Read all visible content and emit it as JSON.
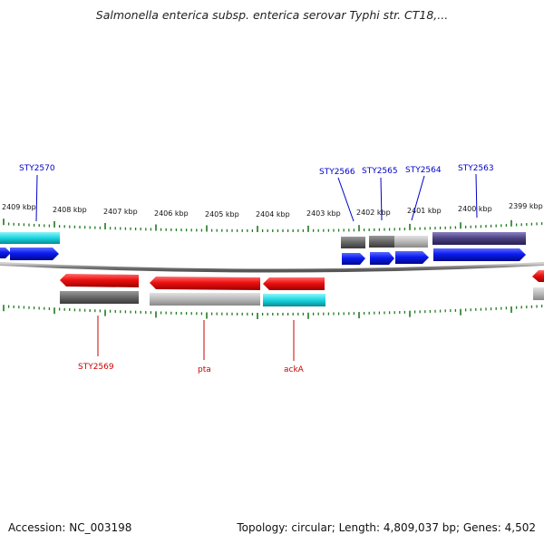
{
  "title": "Salmonella enterica subsp. enterica serovar Typhi str. CT18,...",
  "footer": {
    "accession": "Accession: NC_003198",
    "summary": "Topology: circular; Length: 4,809,037 bp; Genes: 4,502"
  },
  "colors": {
    "backbone": "#8a8a8a",
    "tick": "#1f7a1f",
    "forward_label": "#0000cc",
    "reverse_label": "#cc0000",
    "cds": "#0b1cf0",
    "gene_reverse": "#ee1010",
    "cyan": "#18d6e0",
    "gray_dark": "#6a6a6a",
    "gray_light": "#b8b8b8",
    "purple": "#4a4080"
  },
  "scale": {
    "unit": "kbp",
    "labels": [
      "2409 kbp",
      "2408 kbp",
      "2407 kbp",
      "2406 kbp",
      "2405 kbp",
      "2404 kbp",
      "2403 kbp",
      "2402 kbp",
      "2401 kbp",
      "2400 kbp",
      "2399 kbp"
    ]
  },
  "forward_labels": [
    "STY2570",
    "STY2566",
    "STY2565",
    "STY2564",
    "STY2563"
  ],
  "reverse_labels": [
    "STY2569",
    "pta",
    "ackA"
  ]
}
